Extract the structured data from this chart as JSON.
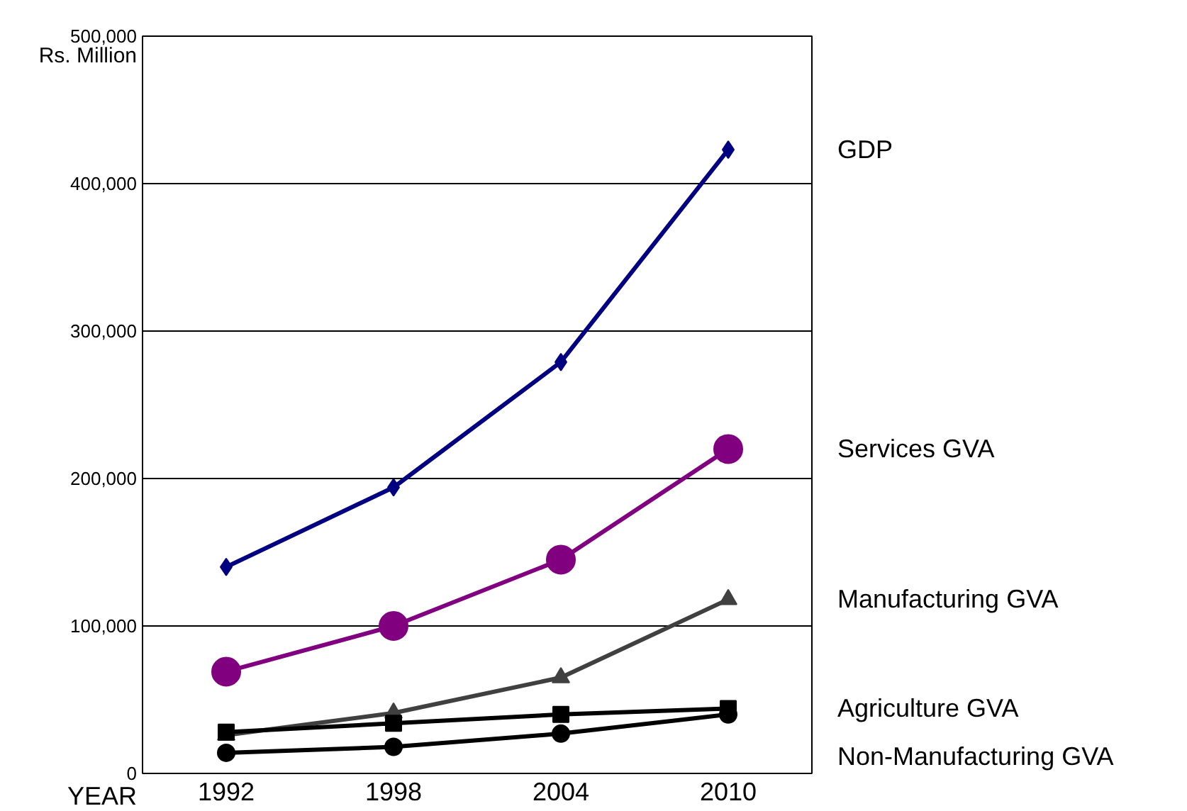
{
  "chart_data": {
    "type": "line",
    "xlabel": "YEAR",
    "ylabel": "Rs. Million",
    "categories": [
      "1992",
      "1998",
      "2004",
      "2010"
    ],
    "ylim": [
      0,
      500000
    ],
    "yticks": [
      0,
      {
        "value": 100000,
        "label": "100,000"
      },
      {
        "value": 200000,
        "label": "200,000"
      },
      {
        "value": 300000,
        "label": "300,000"
      },
      {
        "value": 400000,
        "label": "400,000"
      },
      {
        "value": 500000,
        "label": "500,000"
      }
    ],
    "grid": "y",
    "line_style": "solid",
    "series": [
      {
        "name": "GDP",
        "color": "#000080",
        "marker": "diamond",
        "values": [
          140000,
          194000,
          279000,
          423000
        ]
      },
      {
        "name": "Services GVA",
        "color": "#800080",
        "marker": "circle",
        "values": [
          69000,
          100000,
          145000,
          220000
        ]
      },
      {
        "name": "Manufacturing GVA",
        "color": "#404040",
        "marker": "triangle",
        "values": [
          26000,
          41000,
          65000,
          118000
        ]
      },
      {
        "name": "Agriculture GVA",
        "color": "#000000",
        "marker": "square",
        "values": [
          28000,
          34000,
          40000,
          44000
        ]
      },
      {
        "name": "Non-Manufacturing GVA",
        "color": "#000000",
        "marker": "circle",
        "values": [
          14000,
          18000,
          27000,
          40000
        ]
      }
    ]
  }
}
